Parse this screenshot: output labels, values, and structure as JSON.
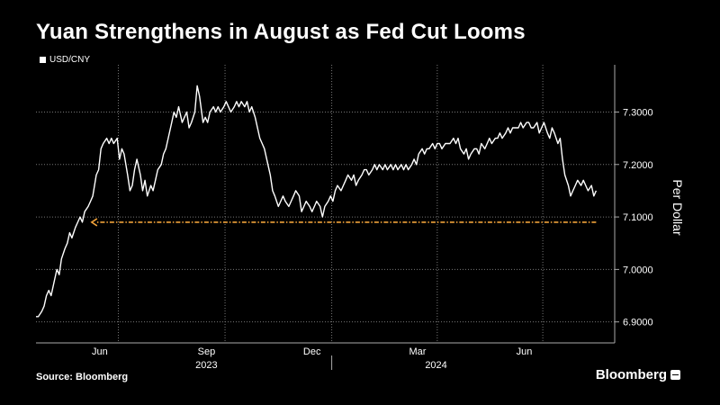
{
  "title": "Yuan Strengthens in August as Fed Cut Looms",
  "source": "Source: Bloomberg",
  "brand": "Bloomberg",
  "colors": {
    "line": "#ffffff",
    "arrow": "#f0a23a",
    "grid": "#777777",
    "background": "#000000"
  },
  "chart_data": {
    "type": "line",
    "series": [
      {
        "name": "USD/CNY",
        "points": [
          [
            "2023-04-21",
            6.91
          ],
          [
            "2023-04-23",
            6.91
          ],
          [
            "2023-04-26",
            6.92
          ],
          [
            "2023-04-28",
            6.93
          ],
          [
            "2023-04-30",
            6.95
          ],
          [
            "2023-05-02",
            6.96
          ],
          [
            "2023-05-04",
            6.95
          ],
          [
            "2023-05-07",
            6.98
          ],
          [
            "2023-05-09",
            7.0
          ],
          [
            "2023-05-11",
            6.99
          ],
          [
            "2023-05-13",
            7.02
          ],
          [
            "2023-05-16",
            7.04
          ],
          [
            "2023-05-18",
            7.05
          ],
          [
            "2023-05-20",
            7.07
          ],
          [
            "2023-05-22",
            7.06
          ],
          [
            "2023-05-25",
            7.08
          ],
          [
            "2023-05-27",
            7.09
          ],
          [
            "2023-05-29",
            7.1
          ],
          [
            "2023-05-31",
            7.09
          ],
          [
            "2023-06-02",
            7.11
          ],
          [
            "2023-06-05",
            7.12
          ],
          [
            "2023-06-07",
            7.13
          ],
          [
            "2023-06-09",
            7.14
          ],
          [
            "2023-06-12",
            7.18
          ],
          [
            "2023-06-14",
            7.19
          ],
          [
            "2023-06-16",
            7.23
          ],
          [
            "2023-06-18",
            7.24
          ],
          [
            "2023-06-21",
            7.25
          ],
          [
            "2023-06-23",
            7.24
          ],
          [
            "2023-06-25",
            7.25
          ],
          [
            "2023-06-27",
            7.24
          ],
          [
            "2023-06-30",
            7.25
          ],
          [
            "2023-07-02",
            7.21
          ],
          [
            "2023-07-04",
            7.23
          ],
          [
            "2023-07-06",
            7.22
          ],
          [
            "2023-07-09",
            7.18
          ],
          [
            "2023-07-11",
            7.15
          ],
          [
            "2023-07-13",
            7.16
          ],
          [
            "2023-07-15",
            7.19
          ],
          [
            "2023-07-17",
            7.21
          ],
          [
            "2023-07-20",
            7.18
          ],
          [
            "2023-07-22",
            7.15
          ],
          [
            "2023-07-24",
            7.17
          ],
          [
            "2023-07-26",
            7.14
          ],
          [
            "2023-07-29",
            7.16
          ],
          [
            "2023-07-31",
            7.15
          ],
          [
            "2023-08-02",
            7.17
          ],
          [
            "2023-08-04",
            7.19
          ],
          [
            "2023-08-07",
            7.2
          ],
          [
            "2023-08-09",
            7.22
          ],
          [
            "2023-08-11",
            7.23
          ],
          [
            "2023-08-13",
            7.25
          ],
          [
            "2023-08-16",
            7.28
          ],
          [
            "2023-08-18",
            7.3
          ],
          [
            "2023-08-20",
            7.29
          ],
          [
            "2023-08-22",
            7.31
          ],
          [
            "2023-08-25",
            7.28
          ],
          [
            "2023-08-27",
            7.29
          ],
          [
            "2023-08-29",
            7.3
          ],
          [
            "2023-08-31",
            7.27
          ],
          [
            "2023-09-02",
            7.28
          ],
          [
            "2023-09-05",
            7.3
          ],
          [
            "2023-09-07",
            7.35
          ],
          [
            "2023-09-09",
            7.33
          ],
          [
            "2023-09-12",
            7.28
          ],
          [
            "2023-09-14",
            7.29
          ],
          [
            "2023-09-16",
            7.28
          ],
          [
            "2023-09-18",
            7.3
          ],
          [
            "2023-09-21",
            7.31
          ],
          [
            "2023-09-23",
            7.3
          ],
          [
            "2023-09-25",
            7.31
          ],
          [
            "2023-09-27",
            7.3
          ],
          [
            "2023-09-30",
            7.31
          ],
          [
            "2023-10-02",
            7.32
          ],
          [
            "2023-10-04",
            7.31
          ],
          [
            "2023-10-06",
            7.3
          ],
          [
            "2023-10-09",
            7.31
          ],
          [
            "2023-10-11",
            7.32
          ],
          [
            "2023-10-13",
            7.31
          ],
          [
            "2023-10-15",
            7.32
          ],
          [
            "2023-10-18",
            7.31
          ],
          [
            "2023-10-20",
            7.32
          ],
          [
            "2023-10-22",
            7.3
          ],
          [
            "2023-10-24",
            7.31
          ],
          [
            "2023-10-27",
            7.29
          ],
          [
            "2023-10-29",
            7.27
          ],
          [
            "2023-10-31",
            7.25
          ],
          [
            "2023-11-02",
            7.24
          ],
          [
            "2023-11-04",
            7.23
          ],
          [
            "2023-11-07",
            7.2
          ],
          [
            "2023-11-09",
            7.18
          ],
          [
            "2023-11-11",
            7.15
          ],
          [
            "2023-11-13",
            7.14
          ],
          [
            "2023-11-16",
            7.12
          ],
          [
            "2023-11-18",
            7.13
          ],
          [
            "2023-11-20",
            7.14
          ],
          [
            "2023-11-22",
            7.13
          ],
          [
            "2023-11-25",
            7.12
          ],
          [
            "2023-11-27",
            7.13
          ],
          [
            "2023-11-29",
            7.14
          ],
          [
            "2023-12-01",
            7.15
          ],
          [
            "2023-12-04",
            7.14
          ],
          [
            "2023-12-06",
            7.11
          ],
          [
            "2023-12-08",
            7.12
          ],
          [
            "2023-12-10",
            7.13
          ],
          [
            "2023-12-13",
            7.12
          ],
          [
            "2023-12-15",
            7.11
          ],
          [
            "2023-12-17",
            7.12
          ],
          [
            "2023-12-19",
            7.13
          ],
          [
            "2023-12-22",
            7.12
          ],
          [
            "2023-12-24",
            7.1
          ],
          [
            "2023-12-26",
            7.12
          ],
          [
            "2023-12-29",
            7.13
          ],
          [
            "2023-12-31",
            7.14
          ],
          [
            "2024-01-02",
            7.13
          ],
          [
            "2024-01-04",
            7.15
          ],
          [
            "2024-01-06",
            7.16
          ],
          [
            "2024-01-09",
            7.15
          ],
          [
            "2024-01-11",
            7.16
          ],
          [
            "2024-01-13",
            7.17
          ],
          [
            "2024-01-15",
            7.18
          ],
          [
            "2024-01-18",
            7.17
          ],
          [
            "2024-01-20",
            7.18
          ],
          [
            "2024-01-22",
            7.16
          ],
          [
            "2024-01-24",
            7.17
          ],
          [
            "2024-01-27",
            7.18
          ],
          [
            "2024-01-29",
            7.19
          ],
          [
            "2024-01-31",
            7.19
          ],
          [
            "2024-02-02",
            7.18
          ],
          [
            "2024-02-05",
            7.19
          ],
          [
            "2024-02-07",
            7.2
          ],
          [
            "2024-02-09",
            7.19
          ],
          [
            "2024-02-11",
            7.2
          ],
          [
            "2024-02-14",
            7.19
          ],
          [
            "2024-02-16",
            7.2
          ],
          [
            "2024-02-18",
            7.19
          ],
          [
            "2024-02-21",
            7.2
          ],
          [
            "2024-02-23",
            7.19
          ],
          [
            "2024-02-25",
            7.2
          ],
          [
            "2024-02-27",
            7.19
          ],
          [
            "2024-03-01",
            7.2
          ],
          [
            "2024-03-03",
            7.19
          ],
          [
            "2024-03-05",
            7.2
          ],
          [
            "2024-03-07",
            7.19
          ],
          [
            "2024-03-10",
            7.2
          ],
          [
            "2024-03-12",
            7.21
          ],
          [
            "2024-03-14",
            7.2
          ],
          [
            "2024-03-16",
            7.22
          ],
          [
            "2024-03-19",
            7.23
          ],
          [
            "2024-03-21",
            7.22
          ],
          [
            "2024-03-23",
            7.23
          ],
          [
            "2024-03-25",
            7.23
          ],
          [
            "2024-03-28",
            7.24
          ],
          [
            "2024-03-30",
            7.23
          ],
          [
            "2024-04-01",
            7.24
          ],
          [
            "2024-04-03",
            7.24
          ],
          [
            "2024-04-05",
            7.23
          ],
          [
            "2024-04-08",
            7.24
          ],
          [
            "2024-04-10",
            7.24
          ],
          [
            "2024-04-12",
            7.24
          ],
          [
            "2024-04-15",
            7.25
          ],
          [
            "2024-04-17",
            7.24
          ],
          [
            "2024-04-19",
            7.25
          ],
          [
            "2024-04-21",
            7.23
          ],
          [
            "2024-04-24",
            7.22
          ],
          [
            "2024-04-26",
            7.23
          ],
          [
            "2024-04-28",
            7.21
          ],
          [
            "2024-04-30",
            7.22
          ],
          [
            "2024-05-03",
            7.23
          ],
          [
            "2024-05-05",
            7.23
          ],
          [
            "2024-05-07",
            7.22
          ],
          [
            "2024-05-09",
            7.24
          ],
          [
            "2024-05-12",
            7.23
          ],
          [
            "2024-05-14",
            7.24
          ],
          [
            "2024-05-16",
            7.25
          ],
          [
            "2024-05-18",
            7.24
          ],
          [
            "2024-05-21",
            7.25
          ],
          [
            "2024-05-23",
            7.25
          ],
          [
            "2024-05-25",
            7.26
          ],
          [
            "2024-05-27",
            7.25
          ],
          [
            "2024-05-30",
            7.26
          ],
          [
            "2024-06-01",
            7.27
          ],
          [
            "2024-06-03",
            7.26
          ],
          [
            "2024-06-05",
            7.27
          ],
          [
            "2024-06-08",
            7.27
          ],
          [
            "2024-06-10",
            7.27
          ],
          [
            "2024-06-12",
            7.28
          ],
          [
            "2024-06-14",
            7.27
          ],
          [
            "2024-06-17",
            7.28
          ],
          [
            "2024-06-19",
            7.28
          ],
          [
            "2024-06-21",
            7.27
          ],
          [
            "2024-06-23",
            7.27
          ],
          [
            "2024-06-26",
            7.28
          ],
          [
            "2024-06-28",
            7.26
          ],
          [
            "2024-06-30",
            7.27
          ],
          [
            "2024-07-02",
            7.28
          ],
          [
            "2024-07-05",
            7.26
          ],
          [
            "2024-07-07",
            7.25
          ],
          [
            "2024-07-09",
            7.27
          ],
          [
            "2024-07-11",
            7.26
          ],
          [
            "2024-07-14",
            7.24
          ],
          [
            "2024-07-16",
            7.25
          ],
          [
            "2024-07-18",
            7.21
          ],
          [
            "2024-07-20",
            7.18
          ],
          [
            "2024-07-23",
            7.16
          ],
          [
            "2024-07-25",
            7.14
          ],
          [
            "2024-07-27",
            7.15
          ],
          [
            "2024-07-29",
            7.16
          ],
          [
            "2024-07-31",
            7.17
          ],
          [
            "2024-08-03",
            7.16
          ],
          [
            "2024-08-05",
            7.17
          ],
          [
            "2024-08-07",
            7.16
          ],
          [
            "2024-08-09",
            7.15
          ],
          [
            "2024-08-12",
            7.16
          ],
          [
            "2024-08-14",
            7.14
          ],
          [
            "2024-08-16",
            7.15
          ]
        ]
      }
    ],
    "annotation": {
      "type": "arrow",
      "from": [
        "2024-08-16",
        7.09
      ],
      "to": [
        "2023-06-08",
        7.09
      ],
      "style": "dashed",
      "color": "#f0a23a"
    },
    "x_ticks": [
      {
        "date": "2023-06-15",
        "label": "Jun"
      },
      {
        "date": "2023-09-15",
        "label": "Sep"
      },
      {
        "date": "2023-12-15",
        "label": "Dec"
      },
      {
        "date": "2024-03-15",
        "label": "Mar"
      },
      {
        "date": "2024-06-15",
        "label": "Jun"
      }
    ],
    "year_labels": [
      {
        "date": "2023-09-15",
        "label": "2023"
      },
      {
        "date": "2024-03-31",
        "label": "2024"
      }
    ],
    "x_gridlines": [
      "2023-07-01",
      "2023-10-01",
      "2024-01-01",
      "2024-04-01",
      "2024-07-01"
    ],
    "y_ticks": [
      6.9,
      7.0,
      7.1,
      7.2,
      7.3
    ],
    "y_tick_labels": [
      "6.9000",
      "7.0000",
      "7.1000",
      "7.2000",
      "7.3000"
    ],
    "ylabel": "Per Dollar",
    "xlim": [
      "2023-04-21",
      "2024-09-01"
    ],
    "ylim": [
      6.86,
      7.39
    ],
    "y_axis_side": "right",
    "grid": true,
    "legend_position": "top-left"
  }
}
